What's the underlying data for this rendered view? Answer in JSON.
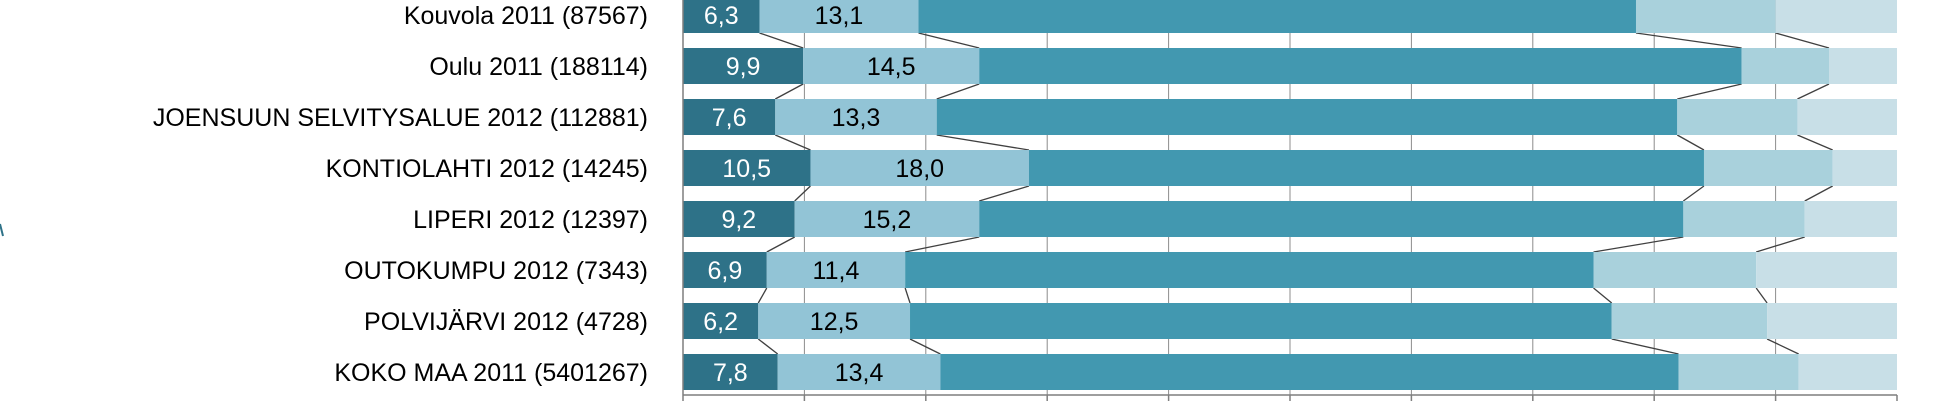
{
  "chart_data": {
    "type": "bar",
    "orientation": "horizontal",
    "stacked": "100%",
    "xlim": [
      0,
      100
    ],
    "grid": true,
    "categories": [
      "Kouvola 2011 (87567)",
      "Oulu 2011 (188114)",
      "JOENSUUN SELVITYSALUE 2012 (112881)",
      "KONTIOLAHTI 2012 (14245)",
      "LIPERI 2012 (12397)",
      "OUTOKUMPU 2012 (7343)",
      "POLVIJÄRVI 2012 (4728)",
      "KOKO MAA 2011 (5401267)"
    ],
    "series": [
      {
        "values": [
          6.3,
          9.9,
          7.6,
          10.5,
          9.2,
          6.9,
          6.2,
          7.8
        ],
        "color": "#2E7288",
        "label_color": "#ffffff",
        "labels": [
          "6,3",
          "9,9",
          "7,6",
          "10,5",
          "9,2",
          "6,9",
          "6,2",
          "7,8"
        ]
      },
      {
        "values": [
          13.1,
          14.5,
          13.3,
          18.0,
          15.2,
          11.4,
          12.5,
          13.4
        ],
        "color": "#92C4D6",
        "label_color": "#000000",
        "labels": [
          "13,1",
          "14,5",
          "13,3",
          "18,0",
          "15,2",
          "11,4",
          "12,5",
          "13,4"
        ]
      },
      {
        "values": [
          59.1,
          62.8,
          61.0,
          55.6,
          58.0,
          56.7,
          57.8,
          60.8
        ],
        "color": "#4298B0",
        "label_color": "#000000",
        "labels": []
      },
      {
        "values": [
          11.5,
          7.2,
          9.9,
          10.6,
          10.0,
          13.4,
          12.8,
          9.9
        ],
        "color": "#A9D1DC",
        "label_color": "#000000",
        "labels": []
      },
      {
        "values": [
          10.0,
          5.6,
          8.2,
          5.3,
          7.6,
          11.6,
          10.7,
          8.1
        ],
        "color": "#C8DFE7",
        "label_color": "#000000",
        "labels": []
      }
    ]
  }
}
